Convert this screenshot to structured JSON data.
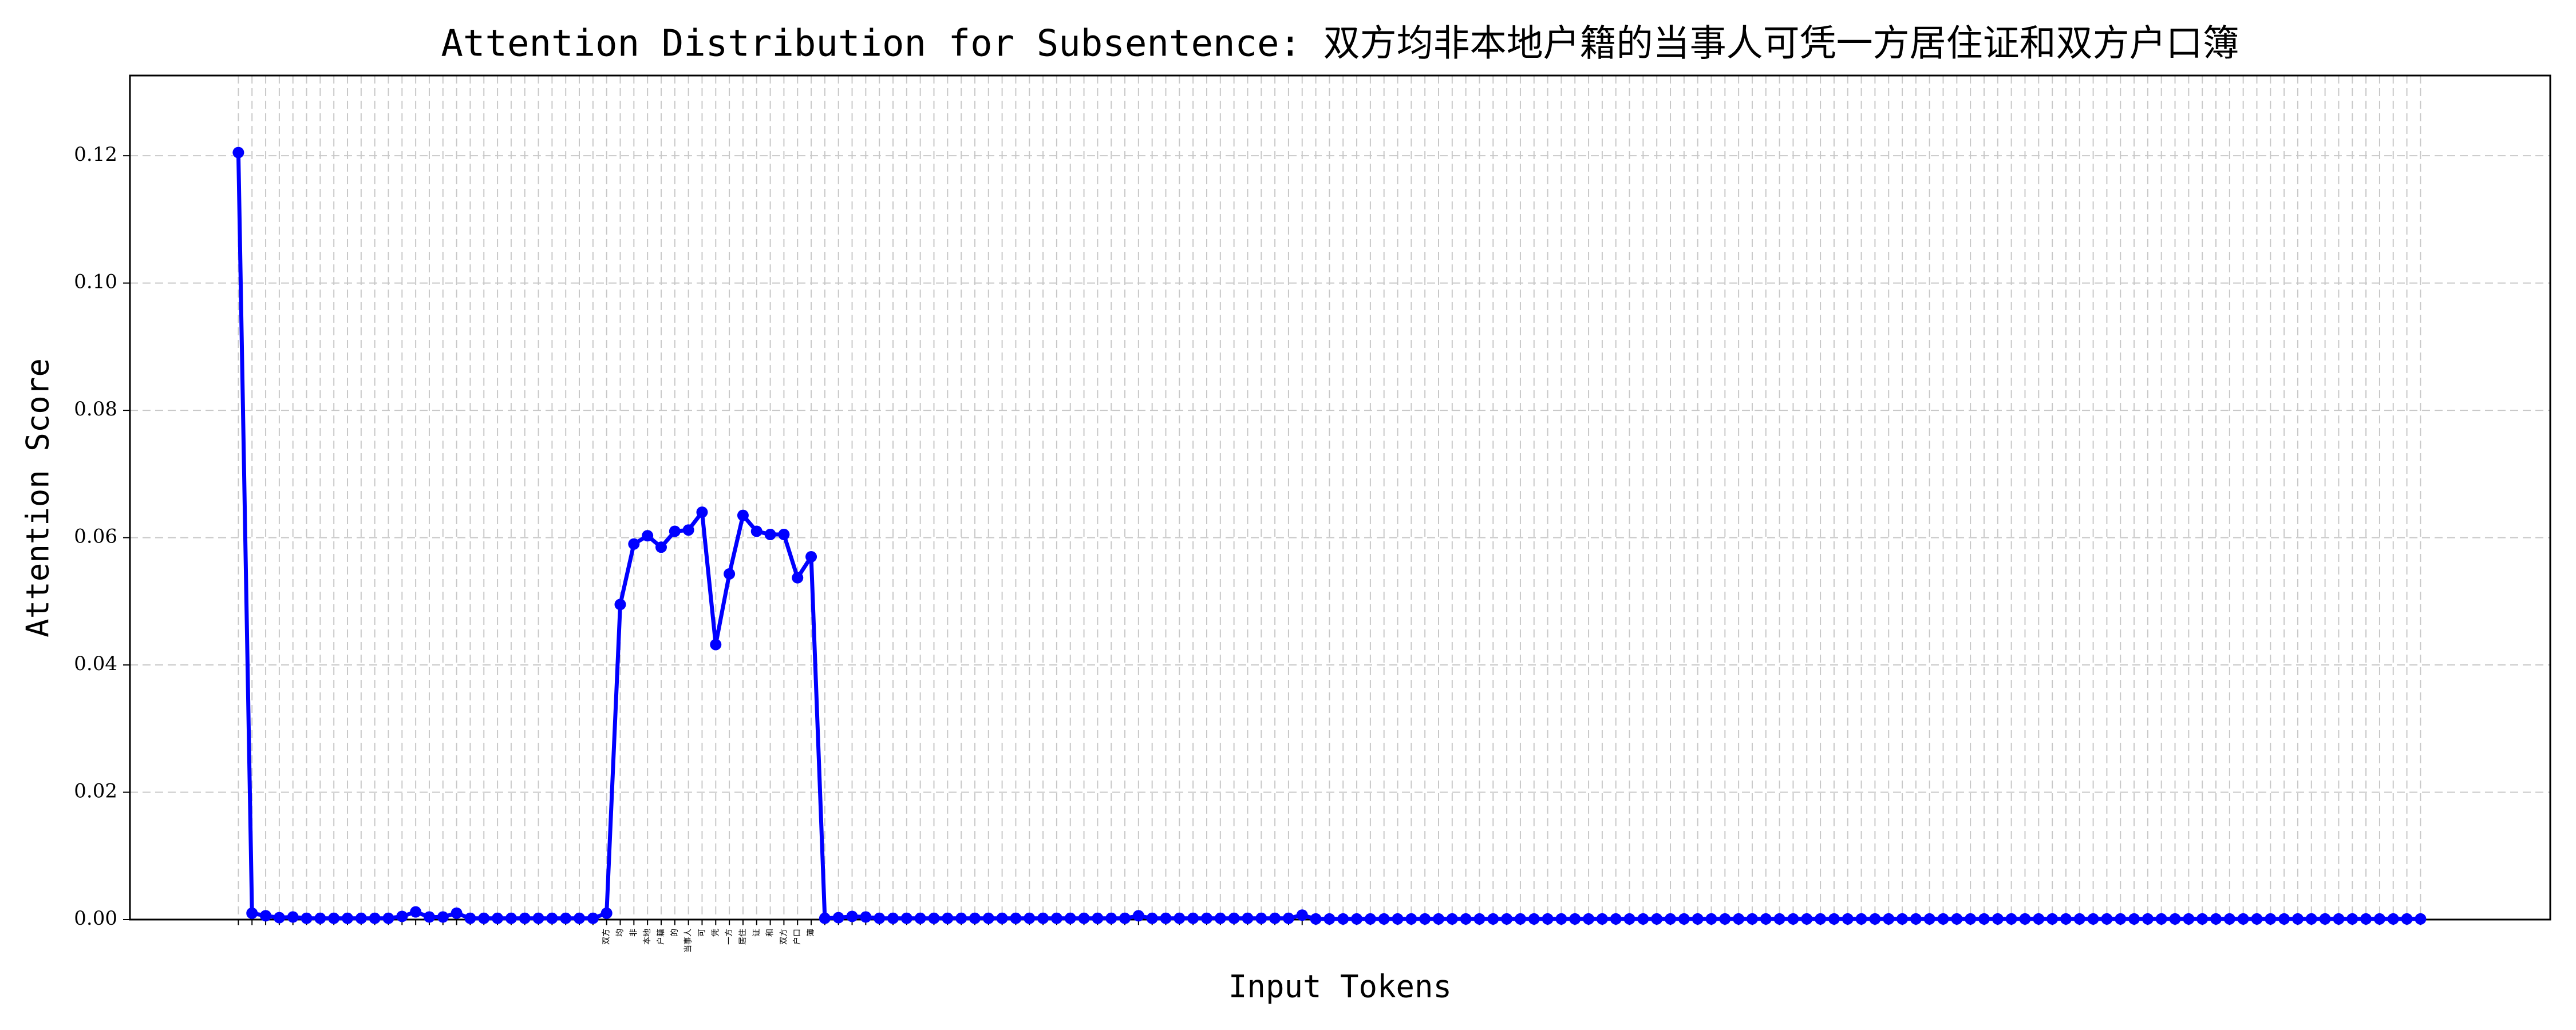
{
  "chart_data": {
    "type": "line",
    "title": "Attention Distribution for Subsentence: 双方均非本地户籍的当事人可凭一方居住证和双方户口簿",
    "x_label": "Input Tokens",
    "y_label": "Attention Score",
    "categories": [
      null,
      null,
      null,
      null,
      null,
      null,
      null,
      null,
      null,
      null,
      null,
      null,
      null,
      null,
      null,
      null,
      null,
      null,
      null,
      null,
      null,
      null,
      null,
      null,
      null,
      null,
      null,
      "双方",
      "均",
      "非",
      "本地",
      "户籍",
      "的",
      "当事人",
      "可",
      "凭",
      "一方",
      "居住",
      "证",
      "和",
      "双方",
      "户口",
      "簿",
      null,
      null,
      null,
      null,
      null,
      null,
      null,
      null,
      null,
      null,
      null,
      null,
      null,
      null,
      null,
      null,
      null,
      null,
      null,
      null,
      null,
      null,
      null,
      null,
      null,
      null,
      null,
      null,
      null,
      null,
      null,
      null,
      null,
      null,
      null,
      null,
      null,
      null,
      null,
      null,
      null,
      null,
      null,
      null,
      null,
      null,
      null,
      null,
      null,
      null,
      null,
      null,
      null,
      null,
      null,
      null,
      null,
      null,
      null,
      null,
      null,
      null,
      null,
      null,
      null,
      null,
      null,
      null,
      null,
      null,
      null,
      null,
      null,
      null,
      null,
      null,
      null,
      null,
      null,
      null,
      null,
      null,
      null,
      null,
      null,
      null,
      null,
      null,
      null,
      null,
      null,
      null,
      null,
      null,
      null,
      null,
      null,
      null,
      null,
      null,
      null,
      null,
      null,
      null,
      null,
      null,
      null,
      null,
      null,
      null,
      null,
      null,
      null,
      null,
      null,
      null,
      null,
      null
    ],
    "series": [
      {
        "name": "Attention Score",
        "color": "#0000ff",
        "values": [
          0.1205,
          0.001,
          0.0006,
          0.0003,
          0.0004,
          0.0002,
          0.0002,
          0.0002,
          0.0002,
          0.0002,
          0.0002,
          0.0002,
          0.0005,
          0.0012,
          0.0004,
          0.0004,
          0.001,
          0.0002,
          0.0002,
          0.0002,
          0.0002,
          0.0002,
          0.0002,
          0.0002,
          0.0002,
          0.0002,
          0.0002,
          0.001,
          0.0495,
          0.059,
          0.0603,
          0.0585,
          0.061,
          0.0612,
          0.064,
          0.0432,
          0.0543,
          0.0635,
          0.061,
          0.0605,
          0.0605,
          0.0537,
          0.057,
          0.0002,
          0.0003,
          0.0005,
          0.0004,
          0.0002,
          0.0002,
          0.0002,
          0.0002,
          0.0002,
          0.0002,
          0.0002,
          0.0002,
          0.0002,
          0.0002,
          0.0002,
          0.0002,
          0.0002,
          0.0002,
          0.0002,
          0.0002,
          0.0002,
          0.0002,
          0.0002,
          0.0006,
          0.0002,
          0.0002,
          0.0002,
          0.0002,
          0.0002,
          0.0002,
          0.0002,
          0.0002,
          0.0002,
          0.0002,
          0.0002,
          0.0007,
          0.0001,
          0.0001,
          0.0001,
          0.0001,
          0.0001,
          0.0001,
          0.0001,
          0.0001,
          0.0001,
          0.0001,
          0.0001,
          0.0001,
          0.0001,
          0.0001,
          0.0001,
          0.0001,
          0.0001,
          0.0001,
          0.0001,
          0.0001,
          0.0001,
          0.0001,
          0.0001,
          0.0001,
          0.0001,
          0.0001,
          0.0001,
          0.0001,
          0.0001,
          0.0001,
          0.0001,
          0.0001,
          0.0001,
          0.0001,
          0.0001,
          0.0001,
          0.0001,
          0.0001,
          0.0001,
          0.0001,
          0.0001,
          0.0001,
          0.0001,
          0.0001,
          0.0001,
          0.0001,
          0.0001,
          0.0001,
          0.0001,
          0.0001,
          0.0001,
          0.0001,
          0.0001,
          0.0001,
          0.0001,
          0.0001,
          0.0001,
          0.0001,
          0.0001,
          0.0001,
          0.0001,
          0.0001,
          0.0001,
          0.0001,
          0.0001,
          0.0001,
          0.0001,
          0.0001,
          0.0001,
          0.0001,
          0.0001,
          0.0001,
          0.0001,
          0.0001,
          0.0001,
          0.0001,
          0.0001,
          0.0001,
          0.0001,
          0.0001,
          0.0001,
          0.0001
        ]
      }
    ],
    "ylim": [
      0,
      0.1326
    ],
    "yticks": [
      {
        "value": 0,
        "label": "0.00"
      },
      {
        "value": 0.02,
        "label": "0.02"
      },
      {
        "value": 0.04,
        "label": "0.04"
      },
      {
        "value": 0.06,
        "label": "0.06"
      },
      {
        "value": 0.08,
        "label": "0.08"
      },
      {
        "value": 0.1,
        "label": "0.10"
      },
      {
        "value": 0.12,
        "label": "0.12"
      }
    ],
    "grid": true
  }
}
